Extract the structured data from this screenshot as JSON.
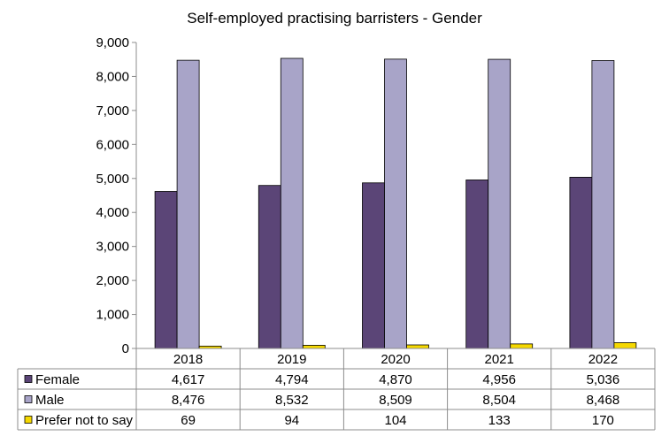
{
  "chart_data": {
    "type": "bar",
    "title": "Self-employed practising barristers - Gender",
    "categories": [
      "2018",
      "2019",
      "2020",
      "2021",
      "2022"
    ],
    "series": [
      {
        "name": "Female",
        "values": [
          4617,
          4794,
          4870,
          4956,
          5036
        ],
        "labels": [
          "4,617",
          "4,794",
          "4,870",
          "4,956",
          "5,036"
        ],
        "color": "#5b4577"
      },
      {
        "name": "Male",
        "values": [
          8476,
          8532,
          8509,
          8504,
          8468
        ],
        "labels": [
          "8,476",
          "8,532",
          "8,509",
          "8,504",
          "8,468"
        ],
        "color": "#a8a4c8"
      },
      {
        "name": "Prefer not to say",
        "values": [
          69,
          94,
          104,
          133,
          170
        ],
        "labels": [
          "69",
          "94",
          "104",
          "133",
          "170"
        ],
        "color": "#f5d800"
      }
    ],
    "ylim": [
      0,
      9000
    ],
    "yticks": [
      0,
      1000,
      2000,
      3000,
      4000,
      5000,
      6000,
      7000,
      8000,
      9000
    ],
    "ytick_labels": [
      "0",
      "1,000",
      "2,000",
      "3,000",
      "4,000",
      "5,000",
      "6,000",
      "7,000",
      "8,000",
      "9,000"
    ],
    "grid": false,
    "legend": "data-table"
  }
}
